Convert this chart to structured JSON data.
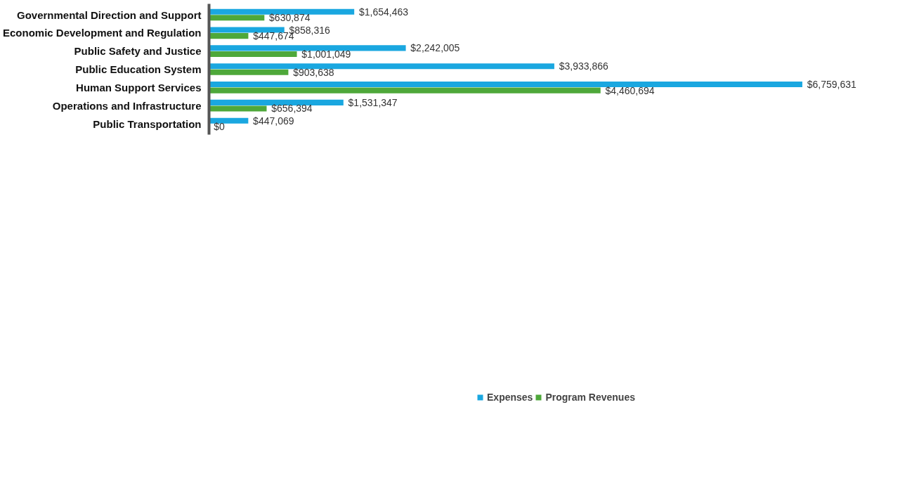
{
  "chart_data": {
    "type": "bar",
    "orientation": "horizontal",
    "tick_labels": "y",
    "categories": [
      "Governmental Direction and Support",
      "Economic Development and Regulation",
      "Public Safety and Justice",
      "Public Education System",
      "Human Support Services",
      "Operations and Infrastructure",
      "Public Transportation"
    ],
    "series": [
      {
        "name": "Expenses",
        "color": "#1aa7e0",
        "values": [
          1654463,
          858316,
          2242005,
          3933866,
          6759631,
          1531347,
          447069
        ],
        "value_labels": [
          "$1,654,463",
          "$858,316",
          "$2,242,005",
          "$3,933,866",
          "$6,759,631",
          "$1,531,347",
          "$447,069"
        ]
      },
      {
        "name": "Program Revenues",
        "color": "#4ea83a",
        "values": [
          630874,
          447674,
          1001049,
          903638,
          4460694,
          656394,
          0
        ],
        "value_labels": [
          "$630,874",
          "$447,674",
          "$1,001,049",
          "$903,638",
          "$4,460,694",
          "$656,394",
          "$0"
        ]
      }
    ],
    "legend": "bottom",
    "grid": false
  }
}
